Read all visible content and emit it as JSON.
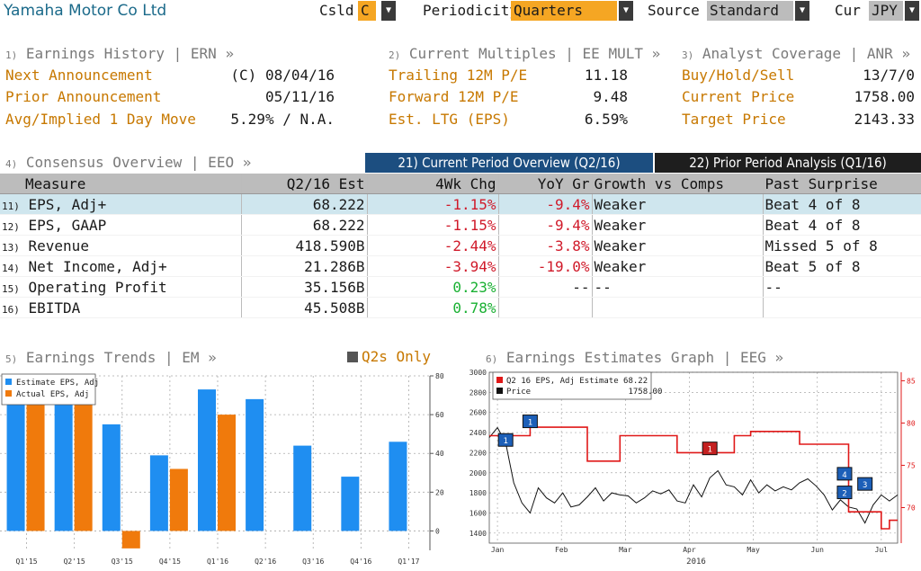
{
  "header": {
    "company": "Yamaha Motor Co Ltd",
    "csld_label": "Csld",
    "csld_value": "C",
    "periodicity_label": "Periodicity",
    "periodicity_value": "Quarters",
    "source_label": "Source",
    "source_value": "Standard",
    "cur_label": "Cur",
    "cur_value": "JPY"
  },
  "earnings_history": {
    "num": "1)",
    "title": "Earnings History | ERN »",
    "rows": [
      {
        "label": "Next Announcement",
        "value": "(C)  08/04/16"
      },
      {
        "label": "Prior Announcement",
        "value": "05/11/16"
      },
      {
        "label": "Avg/Implied 1 Day Move",
        "value": "5.29% / N.A."
      }
    ]
  },
  "current_multiples": {
    "num": "2)",
    "title": "Current Multiples | EE MULT »",
    "rows": [
      {
        "label": "Trailing 12M P/E",
        "value": "11.18"
      },
      {
        "label": "Forward 12M P/E",
        "value": "9.48"
      },
      {
        "label": "Est. LTG (EPS)",
        "value": "6.59%"
      }
    ]
  },
  "analyst_coverage": {
    "num": "3)",
    "title": "Analyst Coverage | ANR »",
    "rows": [
      {
        "label": "Buy/Hold/Sell",
        "value": "13/7/0"
      },
      {
        "label": "Current Price",
        "value": "1758.00"
      },
      {
        "label": "Target Price",
        "value": "2143.33"
      }
    ]
  },
  "consensus": {
    "num": "4)",
    "title": "Consensus Overview | EEO »",
    "tab_current": "21) Current Period Overview (Q2/16)",
    "tab_prior": "22) Prior Period Analysis (Q1/16)",
    "columns": [
      "Measure",
      "Q2/16 Est",
      "4Wk Chg",
      "YoY Gr",
      "Growth vs Comps",
      "Past Surprise"
    ],
    "rows": [
      {
        "num": "11)",
        "measure": "EPS, Adj+",
        "est": "68.222",
        "chg": "-1.15%",
        "yoy": "-9.4%",
        "comps": "Weaker",
        "surprise": "Beat 4 of 8"
      },
      {
        "num": "12)",
        "measure": "EPS, GAAP",
        "est": "68.222",
        "chg": "-1.15%",
        "yoy": "-9.4%",
        "comps": "Weaker",
        "surprise": "Beat 4 of 8"
      },
      {
        "num": "13)",
        "measure": "Revenue",
        "est": "418.590B",
        "chg": "-2.44%",
        "yoy": "-3.8%",
        "comps": "Weaker",
        "surprise": "Missed 5 of 8"
      },
      {
        "num": "14)",
        "measure": "Net Income, Adj+",
        "est": "21.286B",
        "chg": "-3.94%",
        "yoy": "-19.0%",
        "comps": "Weaker",
        "surprise": "Beat 5 of 8"
      },
      {
        "num": "15)",
        "measure": "Operating Profit",
        "est": "35.156B",
        "chg": "0.23%",
        "yoy": "--",
        "comps": "--",
        "surprise": "--"
      },
      {
        "num": "16)",
        "measure": "EBITDA",
        "est": "45.508B",
        "chg": "0.78%",
        "yoy": "",
        "comps": "",
        "surprise": ""
      }
    ]
  },
  "earnings_trends": {
    "num": "5)",
    "title": "Earnings Trends | EM »",
    "toggle_label": "Q2s Only"
  },
  "earnings_graph": {
    "num": "6)",
    "title": "Earnings Estimates Graph | EEG »",
    "legend_estimate": "Q2 16 EPS, Adj Estimate 68.22",
    "legend_price": "Price                    1758.00",
    "year_label": "2016"
  },
  "colors": {
    "estimate": "#1f8ef1",
    "actual": "#f07a0c",
    "price_line": "#111111",
    "eps_line": "#e01818",
    "header_amber": "#f5a623",
    "tab_blue": "#1c4e80"
  },
  "chart_data": [
    {
      "type": "bar",
      "categories": [
        "Q1'15",
        "Q2'15",
        "Q3'15",
        "Q4'15",
        "Q1'16",
        "Q2'16",
        "Q3'16",
        "Q4'16",
        "Q1'17"
      ],
      "series": [
        {
          "name": "Estimate EPS, Adj",
          "values": [
            84,
            83,
            55,
            39,
            73,
            68,
            44,
            28,
            46
          ]
        },
        {
          "name": "Actual EPS, Adj",
          "values": [
            86,
            87,
            -9,
            32,
            60,
            null,
            null,
            null,
            null
          ]
        }
      ],
      "ylim": [
        -10,
        80
      ],
      "yticks": [
        0,
        20,
        40,
        60,
        80
      ],
      "legend": "top-left",
      "grid": true
    },
    {
      "type": "line",
      "x_ticks": [
        "Jan",
        "Feb",
        "Mar",
        "Apr",
        "May",
        "Jun",
        "Jul"
      ],
      "xlabel": "2016",
      "left_axis": {
        "ylim": [
          1300,
          3000
        ],
        "ticks": [
          1400,
          1600,
          1800,
          2000,
          2200,
          2400,
          2600,
          2800,
          3000
        ]
      },
      "right_axis": {
        "ylim": [
          65.8,
          86
        ],
        "ticks": [
          70,
          75,
          80,
          85
        ]
      },
      "series": [
        {
          "name": "Price",
          "axis": "left",
          "x": [
            0,
            2,
            4,
            6,
            8,
            10,
            12,
            14,
            16,
            18,
            20,
            22,
            24,
            26,
            28,
            30,
            32,
            34,
            36,
            38,
            40,
            42,
            44,
            46,
            48,
            50,
            52,
            54,
            56,
            58,
            60,
            62,
            64,
            66,
            68,
            70,
            72,
            74,
            76,
            78,
            80,
            82,
            84,
            86,
            88,
            90,
            92,
            94,
            96,
            98,
            100
          ],
          "y": [
            2350,
            2450,
            2300,
            1900,
            1700,
            1600,
            1850,
            1750,
            1700,
            1800,
            1660,
            1680,
            1760,
            1850,
            1720,
            1800,
            1780,
            1770,
            1700,
            1750,
            1820,
            1790,
            1830,
            1720,
            1700,
            1880,
            1760,
            1950,
            2020,
            1880,
            1860,
            1780,
            1930,
            1800,
            1880,
            1820,
            1860,
            1830,
            1900,
            1940,
            1870,
            1780,
            1630,
            1730,
            1660,
            1640,
            1500,
            1680,
            1780,
            1720,
            1780
          ]
        },
        {
          "name": "Q2 16 EPS, Adj Estimate",
          "axis": "right",
          "x": [
            0,
            4,
            6,
            10,
            12,
            18,
            24,
            26,
            32,
            36,
            44,
            46,
            53,
            56,
            60,
            64,
            66,
            70,
            74,
            76,
            80,
            84,
            88,
            92,
            96,
            98,
            100
          ],
          "y": [
            78.5,
            78.5,
            78.5,
            79.5,
            79.5,
            79.5,
            75.5,
            75.5,
            78.5,
            78.5,
            78.5,
            76.5,
            76.5,
            76.5,
            78.5,
            79.0,
            79.0,
            79.0,
            79.0,
            77.5,
            77.5,
            77.5,
            69.5,
            69.5,
            67.5,
            68.5,
            68.5
          ]
        }
      ],
      "event_markers": [
        "1",
        "1",
        "1",
        "4",
        "2",
        "3"
      ]
    }
  ]
}
